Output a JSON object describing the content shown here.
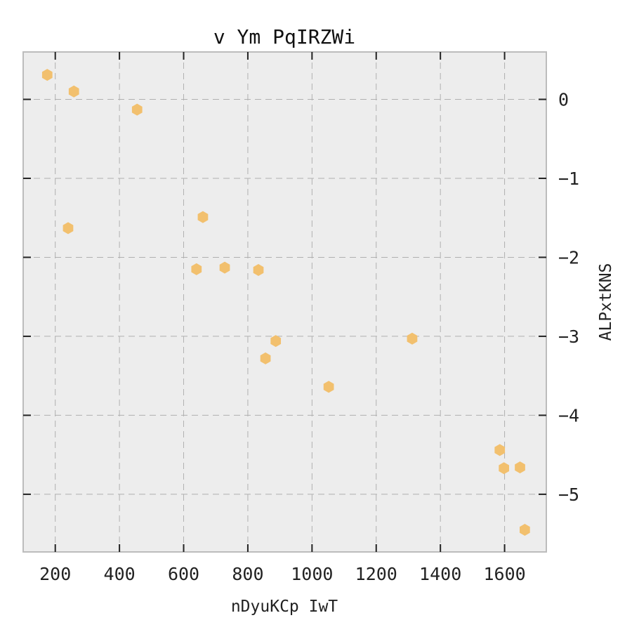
{
  "chart_data": {
    "type": "scatter",
    "title": "v Ym PqIRZWi",
    "xlabel": "nDyuKCp IwT",
    "ylabel": "ALPxtKNS",
    "xlim": [
      100,
      1730
    ],
    "ylim": [
      -5.73,
      0.6
    ],
    "xticks": [
      200,
      400,
      600,
      800,
      1000,
      1200,
      1400,
      1600
    ],
    "yticks": [
      0,
      -1,
      -2,
      -3,
      -4,
      -5
    ],
    "ytick_labels": [
      "0",
      "−1",
      "−2",
      "−3",
      "−4",
      "−5"
    ],
    "y_axis_side": "right",
    "grid": true,
    "marker": "hexagon",
    "color": "#f2c06e",
    "background": "#ededed",
    "series": [
      {
        "x": [
          175,
          258,
          455,
          240,
          660,
          640,
          728,
          833,
          887,
          855,
          1052,
          1312,
          1585,
          1598,
          1648,
          1663
        ],
        "y": [
          0.31,
          0.1,
          -0.13,
          -1.63,
          -1.49,
          -2.15,
          -2.13,
          -2.16,
          -3.06,
          -3.28,
          -3.64,
          -3.03,
          -4.44,
          -4.67,
          -4.66,
          -5.45
        ]
      }
    ]
  }
}
